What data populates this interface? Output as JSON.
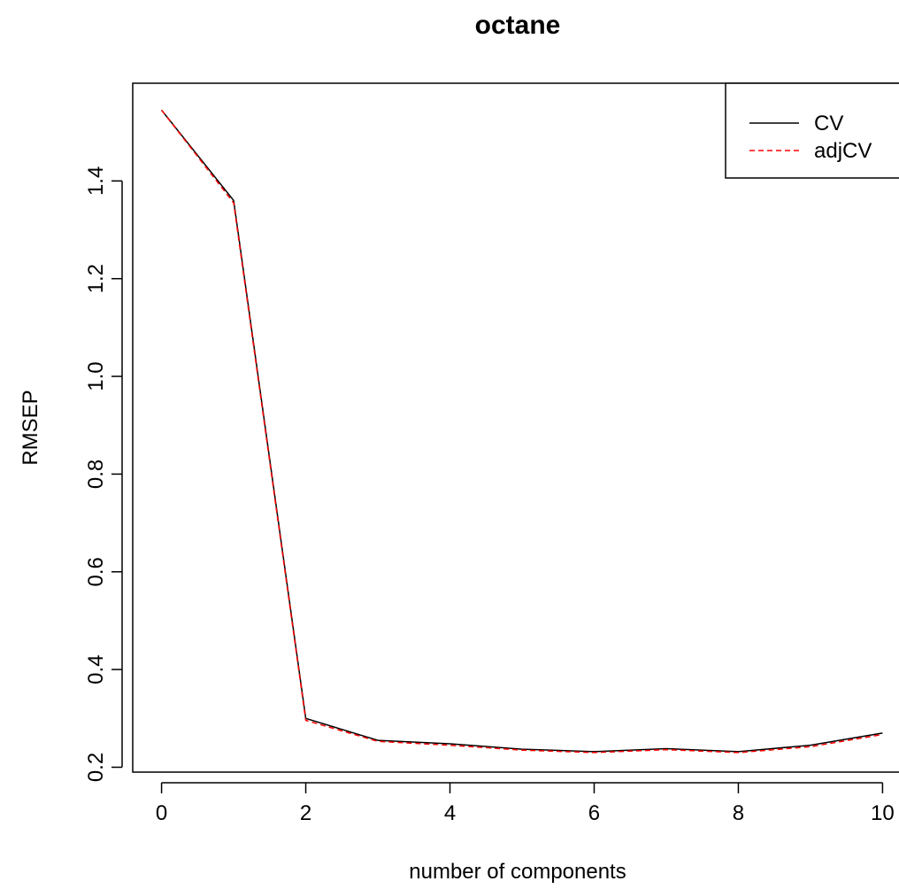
{
  "chart_data": {
    "type": "line",
    "title": "octane",
    "xlabel": "number of components",
    "ylabel": "RMSEP",
    "xlim": [
      -0.4,
      10.4
    ],
    "ylim": [
      0.19,
      1.6
    ],
    "xticks": [
      0,
      2,
      4,
      6,
      8,
      10
    ],
    "yticks": [
      0.2,
      0.4,
      0.6,
      0.8,
      1.0,
      1.2,
      1.4
    ],
    "x": [
      0,
      1,
      2,
      3,
      4,
      5,
      6,
      7,
      8,
      9,
      10
    ],
    "series": [
      {
        "name": "CV",
        "color": "#000000",
        "dash": "solid",
        "values": [
          1.545,
          1.36,
          0.3,
          0.255,
          0.248,
          0.237,
          0.232,
          0.238,
          0.232,
          0.245,
          0.27
        ]
      },
      {
        "name": "adjCV",
        "color": "#ff0000",
        "dash": "dashed",
        "values": [
          1.545,
          1.355,
          0.296,
          0.253,
          0.245,
          0.235,
          0.23,
          0.236,
          0.23,
          0.242,
          0.267
        ]
      }
    ],
    "legend_position": "top-right",
    "grid": false
  }
}
